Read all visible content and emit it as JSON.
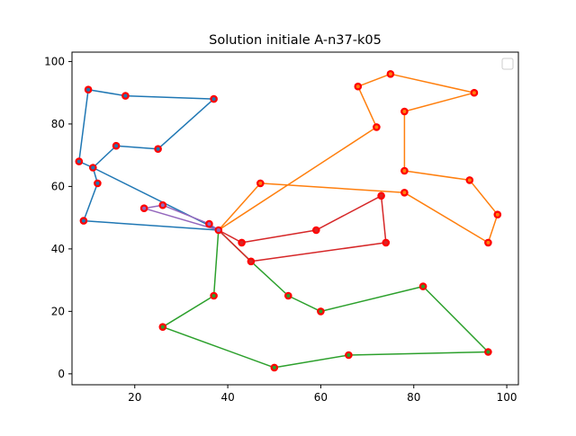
{
  "chart_data": {
    "type": "line",
    "title": "Solution initiale A-n37-k05",
    "xlabel": "",
    "ylabel": "",
    "xlim": [
      6.5,
      102.5
    ],
    "ylim": [
      -3.5,
      103
    ],
    "x_ticks": [
      20,
      40,
      60,
      80,
      100
    ],
    "y_ticks": [
      0,
      20,
      40,
      60,
      80,
      100
    ],
    "grid": false,
    "legend": "upper right (empty)",
    "depot": {
      "x": 38,
      "y": 46
    },
    "routes": [
      {
        "color": "#1f77b4",
        "points": [
          [
            38,
            46
          ],
          [
            11,
            66
          ],
          [
            8,
            68
          ],
          [
            10,
            91
          ],
          [
            18,
            89
          ],
          [
            37,
            88
          ],
          [
            25,
            72
          ],
          [
            16,
            73
          ],
          [
            11,
            66
          ],
          [
            12,
            61
          ],
          [
            9,
            49
          ],
          [
            38,
            46
          ]
        ]
      },
      {
        "color": "#ff7f0e",
        "points": [
          [
            38,
            46
          ],
          [
            72,
            79
          ],
          [
            68,
            92
          ],
          [
            75,
            96
          ],
          [
            93,
            90
          ],
          [
            78,
            84
          ],
          [
            78,
            65
          ],
          [
            92,
            62
          ],
          [
            98,
            51
          ],
          [
            96,
            42
          ],
          [
            78,
            58
          ],
          [
            47,
            61
          ],
          [
            38,
            46
          ]
        ]
      },
      {
        "color": "#2ca02c",
        "points": [
          [
            38,
            46
          ],
          [
            37,
            25
          ],
          [
            26,
            15
          ],
          [
            50,
            2
          ],
          [
            66,
            6
          ],
          [
            96,
            7
          ],
          [
            82,
            28
          ],
          [
            60,
            20
          ],
          [
            53,
            25
          ],
          [
            45,
            36
          ],
          [
            38,
            46
          ]
        ]
      },
      {
        "color": "#d62728",
        "points": [
          [
            38,
            46
          ],
          [
            45,
            36
          ],
          [
            74,
            42
          ],
          [
            73,
            57
          ],
          [
            59,
            46
          ],
          [
            43,
            42
          ],
          [
            38,
            46
          ]
        ]
      },
      {
        "color": "#9467bd",
        "points": [
          [
            38,
            46
          ],
          [
            36,
            48
          ],
          [
            26,
            54
          ],
          [
            22,
            53
          ],
          [
            38,
            46
          ]
        ]
      }
    ],
    "customers": [
      [
        8,
        68
      ],
      [
        10,
        91
      ],
      [
        18,
        89
      ],
      [
        37,
        88
      ],
      [
        25,
        72
      ],
      [
        16,
        73
      ],
      [
        11,
        66
      ],
      [
        12,
        61
      ],
      [
        9,
        49
      ],
      [
        72,
        79
      ],
      [
        68,
        92
      ],
      [
        75,
        96
      ],
      [
        93,
        90
      ],
      [
        78,
        84
      ],
      [
        78,
        65
      ],
      [
        92,
        62
      ],
      [
        98,
        51
      ],
      [
        96,
        42
      ],
      [
        78,
        58
      ],
      [
        47,
        61
      ],
      [
        37,
        25
      ],
      [
        26,
        15
      ],
      [
        50,
        2
      ],
      [
        66,
        6
      ],
      [
        96,
        7
      ],
      [
        82,
        28
      ],
      [
        60,
        20
      ],
      [
        53,
        25
      ],
      [
        45,
        36
      ],
      [
        74,
        42
      ],
      [
        73,
        57
      ],
      [
        59,
        46
      ],
      [
        43,
        42
      ],
      [
        36,
        48
      ],
      [
        26,
        54
      ],
      [
        22,
        53
      ],
      [
        38,
        46
      ]
    ],
    "marker_color": "#ff0000"
  }
}
